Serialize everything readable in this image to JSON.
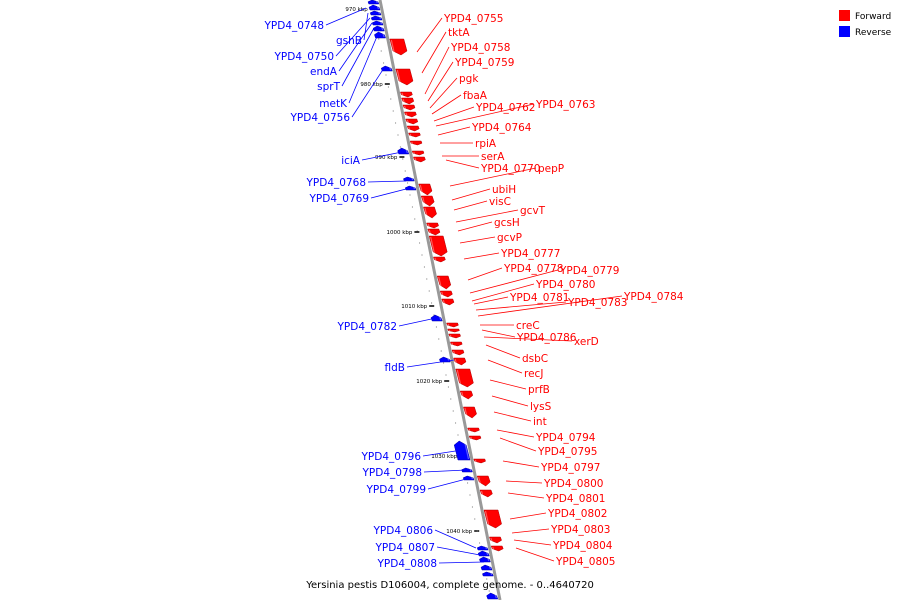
{
  "caption": "Yersinia pestis D106004, complete genome. - 0..4640720",
  "legend": [
    {
      "label": "Forward",
      "color": "#ff0000"
    },
    {
      "label": "Reverse",
      "color": "#0000ff"
    }
  ],
  "colors": {
    "forward": "#ff0000",
    "reverse": "#0000ff",
    "axis": "#999999"
  },
  "ticks": [
    "970 kbp",
    "980 kbp",
    "990 kbp",
    "1000 kbp",
    "1010 kbp",
    "1020 kbp",
    "1030 kbp",
    "1040 kbp"
  ],
  "reverse_genes": [
    "YPD4_0748",
    "gshB",
    "YPD4_0750",
    "endA",
    "sprT",
    "metK",
    "YPD4_0756",
    "iciA",
    "YPD4_0768",
    "YPD4_0769",
    "YPD4_0782",
    "fldB",
    "YPD4_0796",
    "YPD4_0798",
    "YPD4_0799",
    "YPD4_0806",
    "YPD4_0807",
    "YPD4_0808"
  ],
  "forward_genes": [
    "YPD4_0755",
    "tktA",
    "YPD4_0758",
    "YPD4_0759",
    "pgk",
    "fbaA",
    "YPD4_0762",
    "YPD4_0763",
    "YPD4_0764",
    "rpiA",
    "serA",
    "YPD4_0770",
    "pepP",
    "ubiH",
    "visC",
    "gcvT",
    "gcsH",
    "gcvP",
    "YPD4_0777",
    "YPD4_0778",
    "YPD4_0779",
    "YPD4_0780",
    "YPD4_0781",
    "YPD4_0783",
    "YPD4_0784",
    "creC",
    "YPD4_0786",
    "xerD",
    "dsbC",
    "recJ",
    "prfB",
    "lysS",
    "int",
    "YPD4_0794",
    "YPD4_0795",
    "YPD4_0797",
    "YPD4_0800",
    "YPD4_0801",
    "YPD4_0802",
    "YPD4_0803",
    "YPD4_0804",
    "YPD4_0805"
  ]
}
